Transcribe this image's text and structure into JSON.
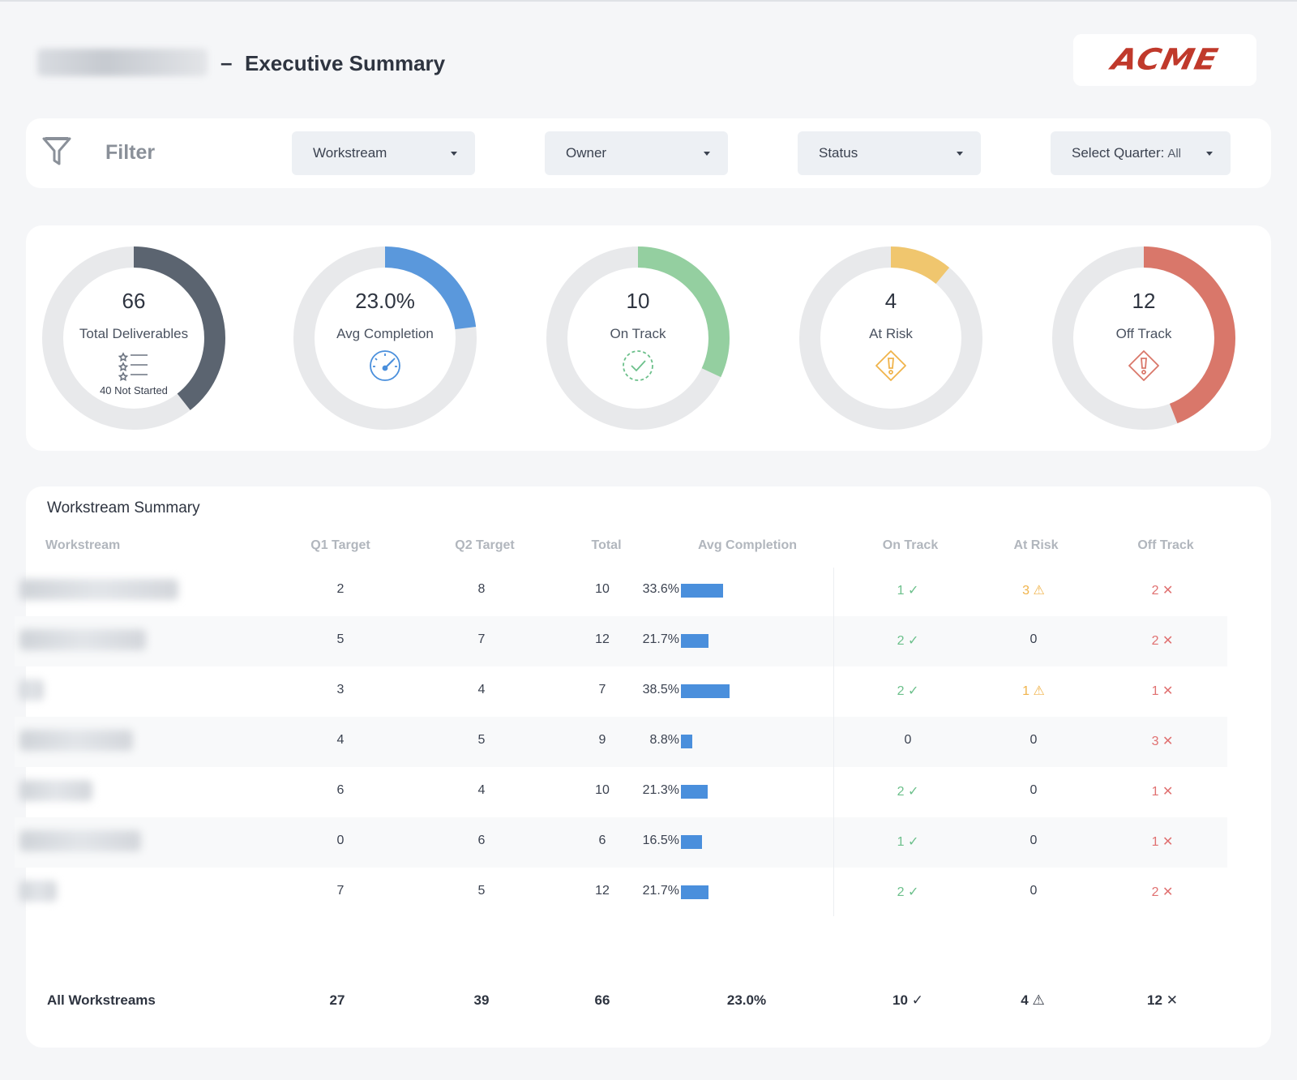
{
  "header": {
    "dash": "–",
    "title": "Executive Summary",
    "logo": "ACME"
  },
  "filter": {
    "label": "Filter",
    "dropdowns": [
      {
        "label": "Workstream",
        "sub": ""
      },
      {
        "label": "Owner",
        "sub": ""
      },
      {
        "label": "Status",
        "sub": ""
      },
      {
        "label": "Select Quarter:",
        "sub": "All"
      }
    ]
  },
  "kpis": [
    {
      "value": "66",
      "label": "Total Deliverables",
      "sub": "40 Not Started",
      "fraction": 0.394,
      "color": "#5b6470",
      "icon": "list-stars-icon"
    },
    {
      "value": "23.0%",
      "label": "Avg Completion",
      "sub": "",
      "fraction": 0.23,
      "color": "#5a98dc",
      "icon": "speedometer-icon"
    },
    {
      "value": "10",
      "label": "On Track",
      "sub": "",
      "fraction": 0.32,
      "color": "#94cfa0",
      "icon": "check-circle-icon"
    },
    {
      "value": "4",
      "label": "At Risk",
      "sub": "",
      "fraction": 0.11,
      "color": "#f0c66e",
      "icon": "warning-diamond-icon"
    },
    {
      "value": "12",
      "label": "Off Track",
      "sub": "",
      "fraction": 0.44,
      "color": "#d9776a",
      "icon": "alert-diamond-icon"
    }
  ],
  "table": {
    "title": "Workstream Summary",
    "headers": [
      "Workstream",
      "Q1 Target",
      "Q2 Target",
      "Total",
      "Avg Completion",
      "On Track",
      "At Risk",
      "Off Track"
    ],
    "rows": [
      {
        "q1": "2",
        "q2": "8",
        "total": "10",
        "avg": "33.6%",
        "avg_value": 33.6,
        "on": "1",
        "risk": "3",
        "off": "2"
      },
      {
        "q1": "5",
        "q2": "7",
        "total": "12",
        "avg": "21.7%",
        "avg_value": 21.7,
        "on": "2",
        "risk": "0",
        "off": "2"
      },
      {
        "q1": "3",
        "q2": "4",
        "total": "7",
        "avg": "38.5%",
        "avg_value": 38.5,
        "on": "2",
        "risk": "1",
        "off": "1"
      },
      {
        "q1": "4",
        "q2": "5",
        "total": "9",
        "avg": "8.8%",
        "avg_value": 8.8,
        "on": "0",
        "risk": "0",
        "off": "3"
      },
      {
        "q1": "6",
        "q2": "4",
        "total": "10",
        "avg": "21.3%",
        "avg_value": 21.3,
        "on": "2",
        "risk": "0",
        "off": "1"
      },
      {
        "q1": "0",
        "q2": "6",
        "total": "6",
        "avg": "16.5%",
        "avg_value": 16.5,
        "on": "1",
        "risk": "0",
        "off": "1"
      },
      {
        "q1": "7",
        "q2": "5",
        "total": "12",
        "avg": "21.7%",
        "avg_value": 21.7,
        "on": "2",
        "risk": "0",
        "off": "2"
      }
    ],
    "totals": {
      "label": "All Workstreams",
      "q1": "27",
      "q2": "39",
      "total": "66",
      "avg": "23.0%",
      "on": "10",
      "risk": "4",
      "off": "12"
    },
    "symbols": {
      "check": "✓",
      "warn": "⚠",
      "cross": "✕"
    }
  }
}
